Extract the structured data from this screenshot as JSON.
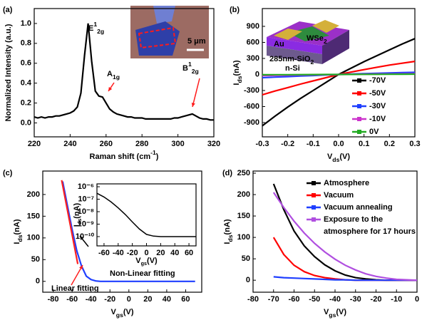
{
  "chart_data": [
    {
      "type": "line",
      "panel_label": "(a)",
      "xlabel": {
        "parts": [
          {
            "text": "Raman shift (cm"
          },
          {
            "text": "-1",
            "shift": "super"
          },
          {
            "text": ")"
          }
        ]
      },
      "ylabel": {
        "parts": [
          {
            "text": "Normalized Intensity (a.u.)"
          }
        ]
      },
      "x": [
        220,
        222,
        224,
        226,
        228,
        230,
        232,
        234,
        236,
        238,
        240,
        242,
        244,
        246,
        248,
        250,
        252,
        254,
        256,
        258,
        260,
        262,
        264,
        266,
        268,
        270,
        272,
        274,
        276,
        278,
        280,
        282,
        284,
        286,
        288,
        290,
        292,
        294,
        296,
        298,
        300,
        302,
        304,
        306,
        308,
        310,
        312,
        314,
        316,
        318,
        320
      ],
      "series": [
        {
          "color": "#000000",
          "values": [
            0.06,
            0.05,
            0.06,
            0.05,
            0.06,
            0.06,
            0.07,
            0.07,
            0.08,
            0.09,
            0.1,
            0.12,
            0.16,
            0.3,
            0.68,
            1.0,
            0.62,
            0.32,
            0.27,
            0.26,
            0.2,
            0.14,
            0.11,
            0.09,
            0.08,
            0.07,
            0.06,
            0.06,
            0.05,
            0.05,
            0.05,
            0.04,
            0.04,
            0.04,
            0.04,
            0.04,
            0.04,
            0.04,
            0.04,
            0.05,
            0.05,
            0.06,
            0.07,
            0.08,
            0.09,
            0.07,
            0.05,
            0.04,
            0.04,
            0.03,
            0.03
          ]
        }
      ],
      "xlim": [
        220,
        320
      ],
      "xticks": [
        220,
        240,
        260,
        280,
        300,
        320
      ],
      "ylim": [
        -0.14,
        1.15
      ],
      "yticks": [
        {
          "value": 0,
          "label": "0.0"
        },
        {
          "value": 0.2,
          "label": "0.2"
        },
        {
          "value": 0.4,
          "label": "0.4"
        },
        {
          "value": 0.6,
          "label": "0.6"
        },
        {
          "value": 0.8,
          "label": "0.8"
        },
        {
          "value": 1,
          "label": "1.0"
        }
      ],
      "annotations": [
        {
          "color": "#000000",
          "parts": [
            {
              "text": "E"
            },
            {
              "text": "1",
              "shift": "super"
            },
            {
              "text": "2g",
              "shift": "sub"
            }
          ]
        },
        {
          "color": "#000000",
          "parts": [
            {
              "text": "A"
            },
            {
              "text": "1g",
              "shift": "sub"
            }
          ]
        },
        {
          "color": "#000000",
          "parts": [
            {
              "text": "B"
            },
            {
              "text": "1",
              "shift": "super"
            },
            {
              "text": "2g",
              "shift": "sub"
            }
          ]
        },
        {
          "color": "#ffffff",
          "parts": [
            {
              "text": "5 μm"
            }
          ]
        }
      ]
    },
    {
      "type": "line",
      "panel_label": "(b)",
      "xlabel": {
        "parts": [
          {
            "text": "V"
          },
          {
            "text": "ds",
            "shift": "sub"
          },
          {
            "text": "(V)"
          }
        ]
      },
      "ylabel": {
        "parts": [
          {
            "text": "I"
          },
          {
            "text": "ds",
            "shift": "sub"
          },
          {
            "text": "(nA)"
          }
        ]
      },
      "x": [
        -0.3,
        -0.25,
        -0.2,
        -0.15,
        -0.1,
        -0.05,
        0,
        0.05,
        0.1,
        0.15,
        0.2,
        0.25,
        0.3
      ],
      "series": [
        {
          "name": "-70V",
          "color": "#000000",
          "values": [
            -960,
            -780,
            -610,
            -450,
            -300,
            -150,
            0,
            120,
            240,
            350,
            460,
            570,
            670
          ]
        },
        {
          "name": "-50V",
          "color": "#ff0000",
          "values": [
            -380,
            -310,
            -245,
            -180,
            -120,
            -60,
            0,
            45,
            90,
            135,
            175,
            210,
            245
          ]
        },
        {
          "name": "-30V",
          "color": "#1f3fff",
          "values": [
            -60,
            -50,
            -40,
            -30,
            -20,
            -10,
            0,
            8,
            15,
            22,
            28,
            35,
            40
          ]
        },
        {
          "name": "-10V",
          "color": "#cc33cc",
          "values": [
            -20,
            -17,
            -13,
            -10,
            -7,
            -3,
            0,
            2,
            5,
            7,
            9,
            12,
            14
          ]
        },
        {
          "name": "0V",
          "color": "#22aa22",
          "values": [
            -6,
            -5,
            -4,
            -3,
            -2,
            -1,
            0,
            1,
            2,
            3,
            4,
            5,
            6
          ]
        }
      ],
      "xlim": [
        -0.3,
        0.3
      ],
      "xticks": [
        -0.3,
        -0.2,
        -0.1,
        {
          "value": 0,
          "label": "0.0"
        },
        0.1,
        0.2,
        0.3
      ],
      "ylim": [
        -1167,
        1233
      ],
      "yticks": [
        -900,
        -600,
        -300,
        0,
        300,
        600,
        900
      ],
      "annotations": [
        {
          "color": "#ffffff",
          "parts": [
            {
              "text": "Au"
            }
          ]
        },
        {
          "color": "#ffffff",
          "parts": [
            {
              "text": "WSe"
            },
            {
              "text": "2",
              "shift": "sub"
            }
          ]
        },
        {
          "color": "#ffffff",
          "parts": [
            {
              "text": "285nm-SiO"
            },
            {
              "text": "2",
              "shift": "sub"
            }
          ]
        },
        {
          "color": "#ffffff",
          "parts": [
            {
              "text": "n-Si"
            }
          ]
        }
      ]
    },
    {
      "type": "line",
      "panel_label": "(c)",
      "xlabel": {
        "parts": [
          {
            "text": "V"
          },
          {
            "text": "gs",
            "shift": "sub"
          },
          {
            "text": "(V)"
          }
        ]
      },
      "ylabel": {
        "parts": [
          {
            "text": "I"
          },
          {
            "text": "ds",
            "shift": "sub"
          },
          {
            "text": "(nA)"
          }
        ]
      },
      "series": [
        {
          "color": "#1f3fff",
          "x": [
            -70,
            -65,
            -60,
            -55,
            -50,
            -45,
            -40,
            -35,
            -30,
            -25,
            -20,
            -15,
            -10,
            -5,
            0,
            5,
            10,
            15,
            20,
            25,
            30,
            35,
            40,
            45,
            50,
            55,
            60,
            65,
            70
          ],
          "values": [
            230,
            175,
            120,
            70,
            35,
            12,
            4,
            1,
            0,
            0,
            0,
            0,
            0,
            0,
            0,
            0,
            0,
            0,
            0,
            0,
            0,
            0,
            0,
            0,
            0,
            0,
            0,
            0,
            0
          ]
        },
        {
          "color": "#ff2020",
          "x": [
            -71,
            -54
          ],
          "values": [
            233,
            40
          ]
        }
      ],
      "xlim": [
        -91,
        77
      ],
      "xticks": [
        -80,
        -60,
        -40,
        -20,
        0,
        20,
        40,
        60
      ],
      "ylim": [
        -25,
        254
      ],
      "yticks": [
        0,
        50,
        100,
        150,
        200
      ],
      "annotations": [
        {
          "color": "#ff2020",
          "parts": [
            {
              "text": "Linear fitting"
            }
          ]
        },
        {
          "color": "#1f3fff",
          "parts": [
            {
              "text": "Non-Linear fitting"
            }
          ]
        }
      ],
      "inset": {
        "type": "line",
        "log_y": true,
        "xlabel": {
          "parts": [
            {
              "text": "V"
            },
            {
              "text": "gs",
              "shift": "sub"
            },
            {
              "text": "(V)"
            }
          ]
        },
        "ylabel": {
          "parts": [
            {
              "text": "I"
            },
            {
              "text": "ds",
              "shift": "sub"
            },
            {
              "text": "(nA)"
            }
          ]
        },
        "x": [
          -70,
          -60,
          -50,
          -40,
          -30,
          -20,
          -10,
          0,
          10,
          20,
          30,
          40,
          50,
          60,
          70
        ],
        "series": [
          {
            "color": "#000000",
            "values": [
              3e-07,
              1.5e-07,
              6e-08,
              2e-08,
              6e-09,
              1.5e-09,
              4e-10,
              1.5e-10,
              1.1e-10,
              1e-10,
              1e-10,
              1e-10,
              1e-10,
              1e-10,
              1e-10
            ]
          }
        ],
        "xlim": [
          -70,
          70
        ],
        "xticks": [
          -60,
          -40,
          -20,
          0,
          20,
          40,
          60
        ],
        "ylim": [
          1.8e-11,
          1.7e-06
        ],
        "yticks": [
          {
            "value": 1e-10,
            "label": "10⁻¹⁰"
          },
          {
            "value": 1e-09,
            "label": "10⁻⁹"
          },
          {
            "value": 1e-08,
            "label": "10⁻⁸"
          },
          {
            "value": 1e-07,
            "label": "10⁻⁷"
          },
          {
            "value": 1e-06,
            "label": "10⁻⁶"
          }
        ]
      }
    },
    {
      "type": "line",
      "panel_label": "(d)",
      "xlabel": {
        "parts": [
          {
            "text": "V"
          },
          {
            "text": "gs",
            "shift": "sub"
          },
          {
            "text": "(V)"
          }
        ]
      },
      "ylabel": {
        "parts": [
          {
            "text": "I"
          },
          {
            "text": "ds",
            "shift": "sub"
          },
          {
            "text": "(nA)"
          }
        ]
      },
      "x": [
        -70,
        -65,
        -60,
        -55,
        -50,
        -45,
        -40,
        -35,
        -30,
        -25,
        -20,
        -15,
        -10,
        -5,
        0
      ],
      "series": [
        {
          "name": "Atmosphere",
          "color": "#000000",
          "values": [
            225,
            165,
            115,
            80,
            55,
            36,
            22,
            12,
            6,
            3,
            1,
            0,
            0,
            0,
            0
          ]
        },
        {
          "name": "Vacuum",
          "color": "#ff0000",
          "values": [
            100,
            60,
            35,
            20,
            11,
            6,
            3,
            1,
            0,
            0,
            0,
            0,
            0,
            0,
            0
          ]
        },
        {
          "name": "Vacuum annealing",
          "color": "#1f3fff",
          "values": [
            8,
            6,
            5,
            4,
            3,
            2,
            1,
            1,
            0,
            0,
            0,
            0,
            0,
            0,
            0
          ]
        },
        {
          "name": "Exposure to the atmosphere for 17 hours",
          "color": "#b04fe0",
          "values": [
            205,
            170,
            138,
            110,
            86,
            66,
            49,
            35,
            24,
            15,
            9,
            5,
            2,
            1,
            0
          ]
        }
      ],
      "xlim": [
        -80,
        0
      ],
      "xticks": [
        -80,
        -70,
        -60,
        -50,
        -40,
        -30,
        -20,
        -10,
        0
      ],
      "ylim": [
        -28,
        255
      ],
      "yticks": [
        0,
        50,
        100,
        150,
        200,
        250
      ]
    }
  ]
}
